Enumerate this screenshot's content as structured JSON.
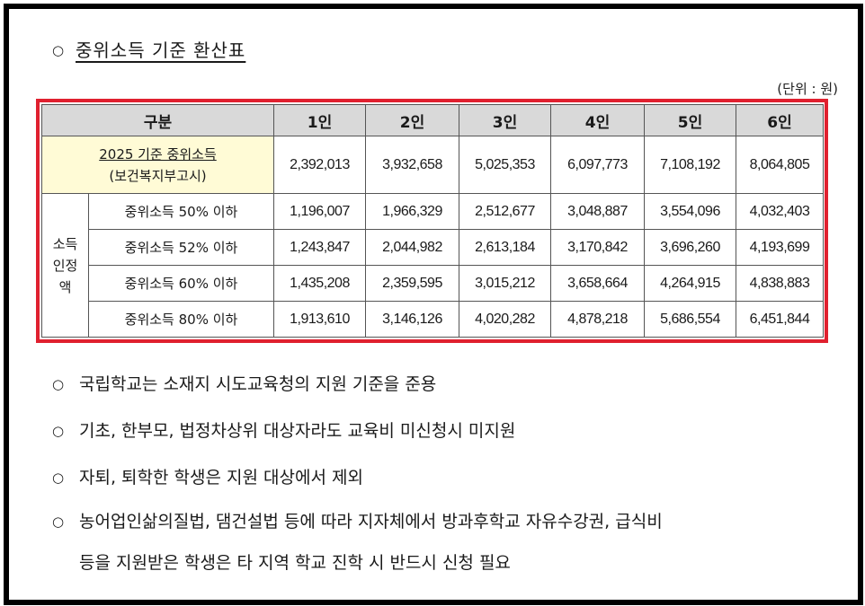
{
  "heading": {
    "bullet": "○",
    "text": "중위소득 기준 환산표"
  },
  "unit_note": "(단위 : 원)",
  "table": {
    "headers": [
      "구분",
      "1인",
      "2인",
      "3인",
      "4인",
      "5인",
      "6인"
    ],
    "base_row": {
      "label_line1": "2025 기준 중위소득",
      "label_line2": "(보건복지부고시)",
      "values": [
        "2,392,013",
        "3,932,658",
        "5,025,353",
        "6,097,773",
        "7,108,192",
        "8,064,805"
      ]
    },
    "group_label": [
      "소득",
      "인정",
      "액"
    ],
    "rows": [
      {
        "label": "중위소득 50% 이하",
        "values": [
          "1,196,007",
          "1,966,329",
          "2,512,677",
          "3,048,887",
          "3,554,096",
          "4,032,403"
        ]
      },
      {
        "label": "중위소득 52% 이하",
        "values": [
          "1,243,847",
          "2,044,982",
          "2,613,184",
          "3,170,842",
          "3,696,260",
          "4,193,699"
        ]
      },
      {
        "label": "중위소득 60% 이하",
        "values": [
          "1,435,208",
          "2,359,595",
          "3,015,212",
          "3,658,664",
          "4,264,915",
          "4,838,883"
        ]
      },
      {
        "label": "중위소득 80% 이하",
        "values": [
          "1,913,610",
          "3,146,126",
          "4,020,282",
          "4,878,218",
          "5,686,554",
          "6,451,844"
        ]
      }
    ]
  },
  "notes": [
    {
      "bullet": "○",
      "line1": "국립학교는 소재지 시도교육청의 지원 기준을 준용"
    },
    {
      "bullet": "○",
      "line1": "기초, 한부모, 법정차상위 대상자라도 교육비 미신청시 미지원"
    },
    {
      "bullet": "○",
      "line1": "자퇴, 퇴학한 학생은 지원 대상에서 제외"
    },
    {
      "bullet": "○",
      "line1": "농어업인삶의질법, 댐건설법 등에 따라 지자체에서 방과후학교 자유수강권, 급식비",
      "line2": "등을 지원받은 학생은 타 지역 학교 진학 시 반드시 신청 필요"
    }
  ]
}
